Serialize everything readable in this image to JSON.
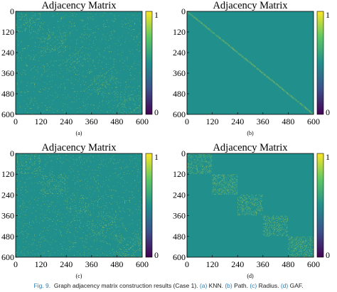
{
  "chart_data": [
    {
      "type": "heatmap",
      "title": "Adjacency Matrix",
      "method": "KNN",
      "sub_label": "(a)",
      "x_ticks": [
        "0",
        "120",
        "240",
        "360",
        "480",
        "600"
      ],
      "y_ticks": [
        "0",
        "120",
        "240",
        "360",
        "480",
        "600"
      ],
      "xlim": [
        0,
        600
      ],
      "ylim": [
        0,
        600
      ],
      "colorbar": {
        "ticks": [
          "0",
          "1"
        ],
        "range": [
          0,
          1
        ]
      },
      "blocks": [
        [
          0,
          120
        ],
        [
          120,
          240
        ],
        [
          240,
          360
        ],
        [
          360,
          480
        ],
        [
          480,
          600
        ]
      ],
      "in_block_density": 0.14,
      "off_block_density": 0.045,
      "diagonal": false
    },
    {
      "type": "heatmap",
      "title": "Adjacency Matrix",
      "method": "Path",
      "sub_label": "(b)",
      "x_ticks": [
        "0",
        "120",
        "240",
        "360",
        "480",
        "600"
      ],
      "y_ticks": [
        "0",
        "120",
        "240",
        "360",
        "480",
        "600"
      ],
      "xlim": [
        0,
        600
      ],
      "ylim": [
        0,
        600
      ],
      "colorbar": {
        "ticks": [
          "0",
          "1"
        ],
        "range": [
          0,
          1
        ]
      },
      "blocks": [],
      "in_block_density": 0,
      "off_block_density": 0,
      "diagonal": true
    },
    {
      "type": "heatmap",
      "title": "Adjacency Matrix",
      "method": "Radius",
      "sub_label": "(c)",
      "x_ticks": [
        "0",
        "120",
        "240",
        "360",
        "480",
        "600"
      ],
      "y_ticks": [
        "0",
        "120",
        "240",
        "360",
        "480",
        "600"
      ],
      "xlim": [
        0,
        600
      ],
      "ylim": [
        0,
        600
      ],
      "colorbar": {
        "ticks": [
          "0",
          "1"
        ],
        "range": [
          0,
          1
        ]
      },
      "blocks": [
        [
          0,
          120
        ],
        [
          120,
          240
        ],
        [
          240,
          360
        ],
        [
          360,
          480
        ],
        [
          480,
          600
        ]
      ],
      "in_block_density": 0.16,
      "off_block_density": 0.05,
      "diagonal": false
    },
    {
      "type": "heatmap",
      "title": "Adjacency Matrix",
      "method": "GAF",
      "sub_label": "(d)",
      "x_ticks": [
        "0",
        "120",
        "240",
        "360",
        "480",
        "600"
      ],
      "y_ticks": [
        "0",
        "120",
        "240",
        "360",
        "480",
        "600"
      ],
      "xlim": [
        0,
        600
      ],
      "ylim": [
        0,
        600
      ],
      "colorbar": {
        "ticks": [
          "0",
          "1"
        ],
        "range": [
          0,
          1
        ]
      },
      "blocks": [
        [
          0,
          120
        ],
        [
          120,
          240
        ],
        [
          240,
          360
        ],
        [
          360,
          480
        ],
        [
          480,
          600
        ]
      ],
      "in_block_density": 0.35,
      "off_block_density": 0.0,
      "diagonal": false
    }
  ],
  "colors": {
    "background": "#21908d",
    "high": "#f9e721",
    "mid": "#8fd744"
  },
  "caption": {
    "fig": "Fig. 9.",
    "text": "Graph adjacency matrix construction results (Case 1).",
    "a": "(a)",
    "a_text": "KNN.",
    "b": "(b)",
    "b_text": "Path.",
    "c": "(c)",
    "c_text": "Radius.",
    "d": "(d)",
    "d_text": "GAF."
  }
}
